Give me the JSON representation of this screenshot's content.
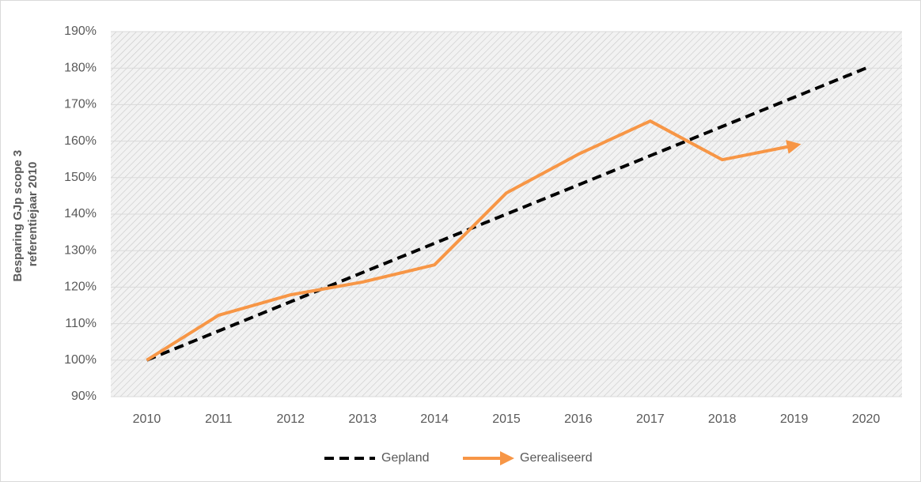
{
  "chart_data": {
    "type": "line",
    "y_label": [
      "Besparing GJp scope 3",
      "referentiejaar 2010"
    ],
    "categories": [
      "2010",
      "2011",
      "2012",
      "2013",
      "2014",
      "2015",
      "2016",
      "2017",
      "2018",
      "2019",
      "2020"
    ],
    "series": [
      {
        "name": "Gepland",
        "color": "#000000",
        "style": "dashed",
        "values": [
          100,
          108,
          116,
          124,
          132,
          140,
          148,
          156,
          164,
          172,
          180
        ]
      },
      {
        "name": "Gerealiseerd",
        "color": "#f79646",
        "style": "arrow",
        "values": [
          100,
          112.3,
          117.9,
          121.4,
          126.1,
          145.8,
          156.4,
          165.5,
          154.9,
          158.8,
          null
        ]
      }
    ],
    "ylim": [
      90,
      190
    ],
    "yticks": [
      {
        "value": 90,
        "label": "90%"
      },
      {
        "value": 100,
        "label": "100%"
      },
      {
        "value": 110,
        "label": "110%"
      },
      {
        "value": 120,
        "label": "120%"
      },
      {
        "value": 130,
        "label": "130%"
      },
      {
        "value": 140,
        "label": "140%"
      },
      {
        "value": 150,
        "label": "150%"
      },
      {
        "value": 160,
        "label": "160%"
      },
      {
        "value": 170,
        "label": "170%"
      },
      {
        "value": 180,
        "label": "180%"
      },
      {
        "value": 190,
        "label": "190%"
      }
    ],
    "grid": true,
    "legend": "bottom"
  }
}
